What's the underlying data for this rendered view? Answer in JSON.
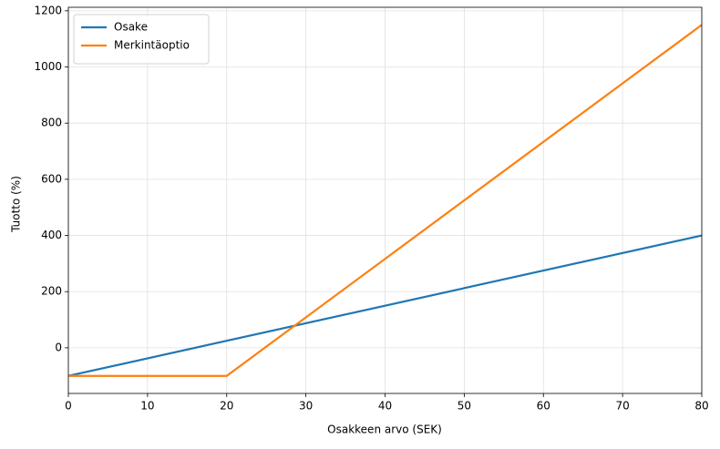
{
  "chart_data": {
    "type": "line",
    "xlabel": "Osakkeen arvo (SEK)",
    "ylabel": "Tuotto (%)",
    "xlim": [
      0,
      80
    ],
    "ylim": [
      -162.5,
      1212.5
    ],
    "xticks": [
      0,
      10,
      20,
      30,
      40,
      50,
      60,
      70,
      80
    ],
    "yticks": [
      0,
      200,
      400,
      600,
      800,
      1000,
      1200
    ],
    "grid": true,
    "legend": "upper-left",
    "series": [
      {
        "name": "Osake",
        "color": "#1f77b4",
        "x": [
          0,
          80
        ],
        "values": [
          -100,
          400
        ]
      },
      {
        "name": "Merkintäoptio",
        "color": "#ff7f0e",
        "x": [
          0,
          20,
          80
        ],
        "values": [
          -100,
          -100,
          1150
        ]
      }
    ]
  }
}
